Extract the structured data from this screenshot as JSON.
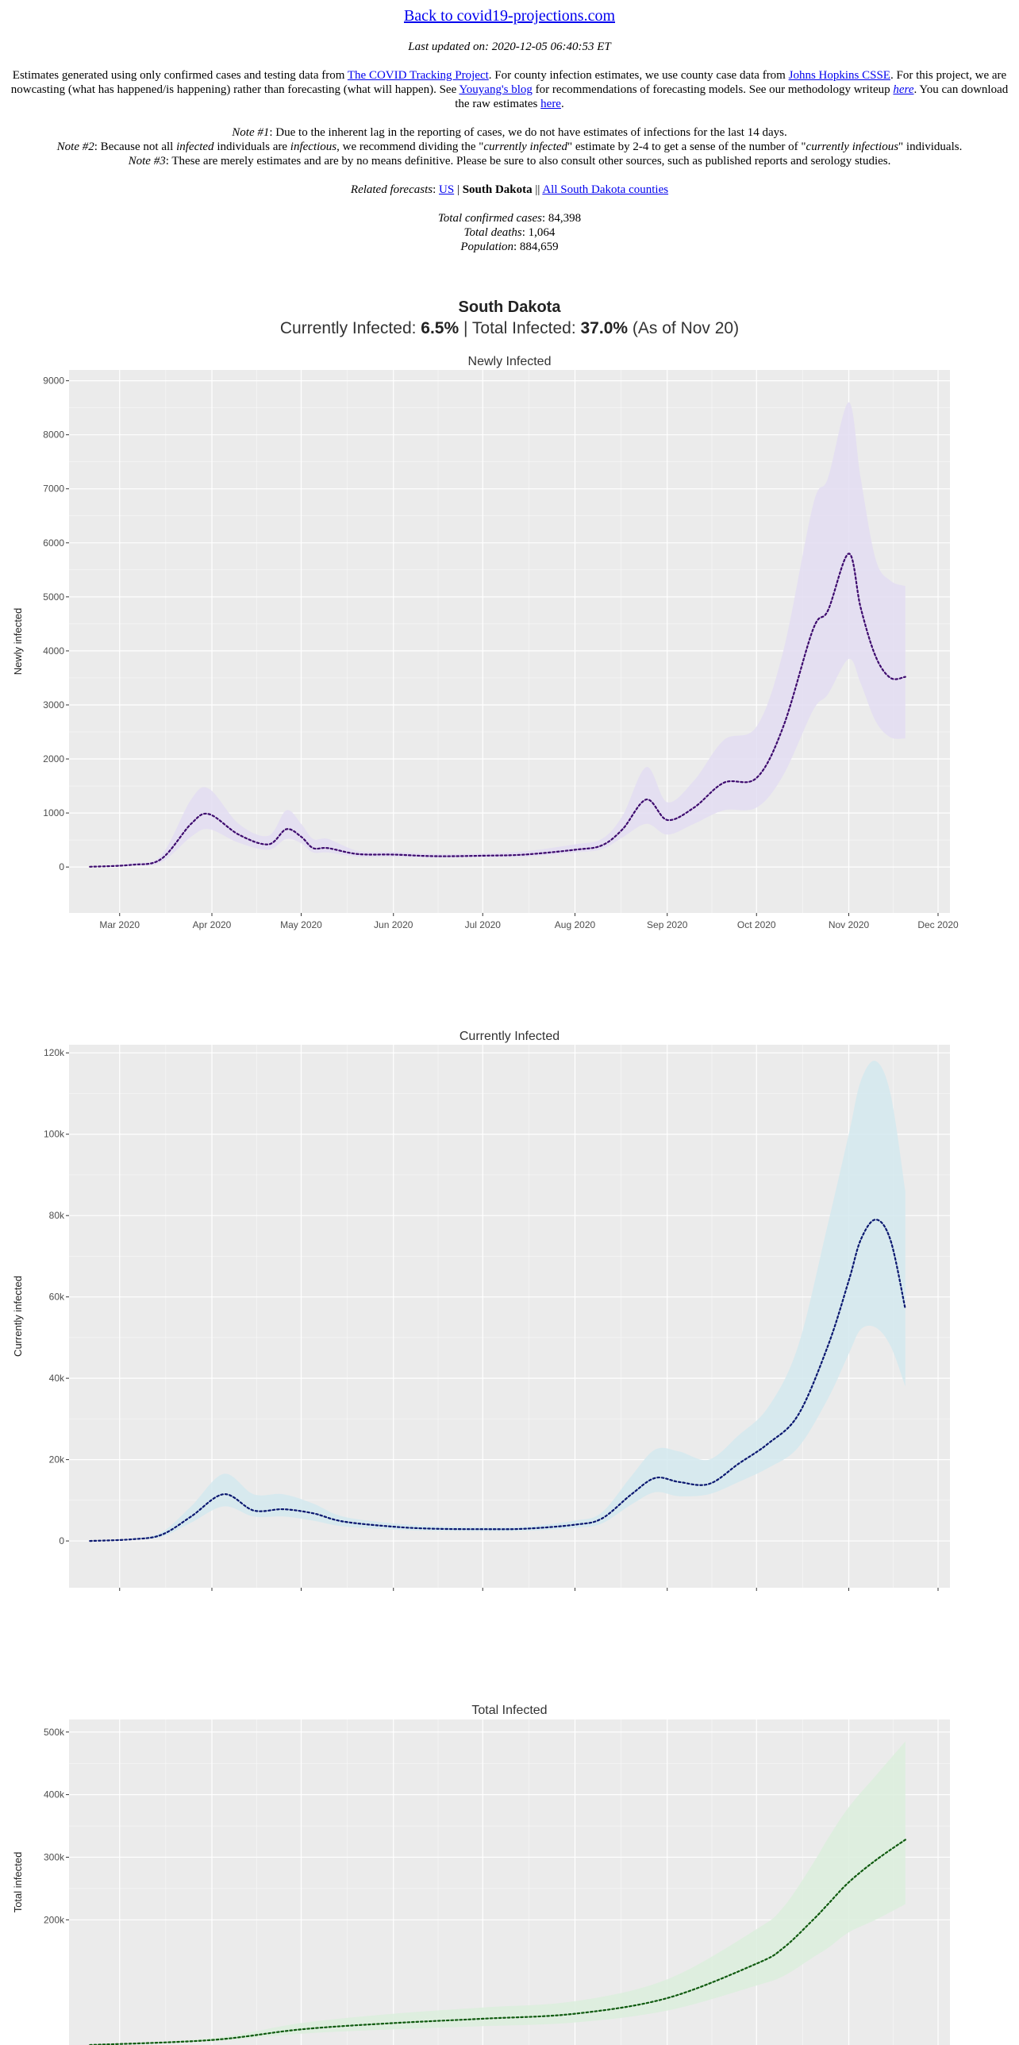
{
  "header": {
    "back_link": "Back to covid19-projections.com",
    "last_updated_label": "Last updated on: 2020-12-05 06:40:53 ET",
    "intro_1": "Estimates generated using only confirmed cases and testing data from ",
    "covid_tracking_link": "The COVID Tracking Project",
    "intro_2": ". For county infection estimates, we use county case data from ",
    "jhu_link": "Johns Hopkins CSSE",
    "intro_3": ". For this project, we are nowcasting (what has happened/is happening) rather than forecasting (what will happen). See ",
    "youyang_link": "Youyang's blog",
    "intro_4": " for recommendations of forecasting models. See our methodology writeup ",
    "methodology_link": "here",
    "intro_5": ". You can download the raw estimates ",
    "raw_link": "here",
    "intro_6": ".",
    "note1_label": "Note #1",
    "note1_text": ": Due to the inherent lag in the reporting of cases, we do not have estimates of infections for the last 14 days.",
    "note2_label": "Note #2",
    "note2_a": ": Because not all ",
    "note2_infected": "infected",
    "note2_b": " individuals are ",
    "note2_infectious": "infectious",
    "note2_c": ", we recommend dividing the \"",
    "note2_currently_infected": "currently infected",
    "note2_d": "\" estimate by 2-4 to get a sense of the number of \"",
    "note2_currently_infectious": "currently infectious",
    "note2_e": "\" individuals.",
    "note3_label": "Note #3",
    "note3_text": ": These are merely estimates and are by no means definitive. Please be sure to also consult other sources, such as published reports and serology studies.",
    "related_label": "Related forecasts",
    "related_us": "US",
    "related_sep1": " | ",
    "related_state": "South Dakota",
    "related_sep2": " || ",
    "related_counties": "All South Dakota counties",
    "cases_label": "Total confirmed cases",
    "cases_value": ": 84,398",
    "deaths_label": "Total deaths",
    "deaths_value": ": 1,064",
    "pop_label": "Population",
    "pop_value": ": 884,659"
  },
  "state": {
    "name": "South Dakota",
    "currently_label": "Currently Infected: ",
    "currently_value": "6.5%",
    "sep": " | Total Infected: ",
    "total_value": "37.0%",
    "asof": " (As of Nov 20)"
  },
  "colors": {
    "panel_bg": "#ebebeb",
    "grid": "#ffffff",
    "newly_band": "#e3ddf2",
    "newly_line": "#3d0a6e",
    "current_band": "#d3e9ef",
    "current_line": "#0b1870",
    "total_band": "#dcefdd",
    "total_line": "#0f5a0f"
  },
  "x_ticks": [
    "Mar 2020",
    "Apr 2020",
    "May 2020",
    "Jun 2020",
    "Jul 2020",
    "Aug 2020",
    "Sep 2020",
    "Oct 2020",
    "Nov 2020",
    "Dec 2020"
  ],
  "chart_data": [
    {
      "type": "line",
      "title": "Newly Infected",
      "ylabel": "Newly infected",
      "x_axis": "date",
      "x_range": [
        "2020-02-13",
        "2020-12-05"
      ],
      "ylim": [
        -850,
        9200
      ],
      "y_ticks": [
        0,
        1000,
        2000,
        3000,
        4000,
        5000,
        6000,
        7000,
        8000,
        9000
      ],
      "y_tick_labels": [
        "0",
        "1000",
        "2000",
        "3000",
        "4000",
        "5000",
        "6000",
        "7000",
        "8000",
        "9000"
      ],
      "series": [
        {
          "x": [
            "2020-02-20",
            "2020-03-05",
            "2020-03-15",
            "2020-03-25",
            "2020-03-31",
            "2020-04-10",
            "2020-04-20",
            "2020-04-26",
            "2020-05-01",
            "2020-05-05",
            "2020-05-10",
            "2020-05-20",
            "2020-06-01",
            "2020-06-15",
            "2020-07-01",
            "2020-07-15",
            "2020-08-01",
            "2020-08-10",
            "2020-08-17",
            "2020-08-25",
            "2020-09-01",
            "2020-09-10",
            "2020-09-20",
            "2020-10-01",
            "2020-10-10",
            "2020-10-20",
            "2020-10-25",
            "2020-11-01",
            "2020-11-05",
            "2020-11-10",
            "2020-11-15",
            "2020-11-20"
          ],
          "y": [
            5,
            40,
            150,
            800,
            980,
            600,
            420,
            700,
            560,
            350,
            350,
            240,
            230,
            200,
            210,
            230,
            320,
            400,
            700,
            1250,
            870,
            1100,
            1560,
            1650,
            2600,
            4400,
            4750,
            5800,
            4800,
            3900,
            3500,
            3520
          ],
          "low": [
            0,
            20,
            90,
            560,
            700,
            450,
            320,
            520,
            440,
            270,
            270,
            190,
            190,
            170,
            180,
            190,
            270,
            330,
            550,
            800,
            600,
            800,
            1050,
            1100,
            1700,
            2900,
            3200,
            3850,
            3400,
            2700,
            2400,
            2380
          ],
          "high": [
            10,
            70,
            220,
            1250,
            1450,
            800,
            580,
            1050,
            800,
            520,
            520,
            300,
            280,
            240,
            250,
            290,
            420,
            520,
            950,
            1850,
            1200,
            1600,
            2350,
            2600,
            4000,
            6700,
            7200,
            8600,
            7200,
            5700,
            5300,
            5200
          ]
        }
      ]
    },
    {
      "type": "line",
      "title": "Currently Infected",
      "ylabel": "Currently infected",
      "x_axis": "date",
      "x_range": [
        "2020-02-13",
        "2020-12-05"
      ],
      "ylim": [
        -11500,
        122000
      ],
      "y_ticks": [
        0,
        20000,
        40000,
        60000,
        80000,
        100000,
        120000
      ],
      "y_tick_labels": [
        "0",
        "20k",
        "40k",
        "60k",
        "80k",
        "100k",
        "120k"
      ],
      "series": [
        {
          "x": [
            "2020-02-20",
            "2020-03-05",
            "2020-03-15",
            "2020-03-25",
            "2020-04-05",
            "2020-04-15",
            "2020-04-25",
            "2020-05-05",
            "2020-05-15",
            "2020-06-01",
            "2020-06-15",
            "2020-07-01",
            "2020-07-15",
            "2020-08-01",
            "2020-08-10",
            "2020-08-20",
            "2020-08-28",
            "2020-09-05",
            "2020-09-15",
            "2020-09-25",
            "2020-10-05",
            "2020-10-15",
            "2020-10-25",
            "2020-11-01",
            "2020-11-05",
            "2020-11-10",
            "2020-11-15",
            "2020-11-20"
          ],
          "y": [
            0,
            400,
            1500,
            6000,
            11500,
            7500,
            7800,
            6800,
            4800,
            3500,
            3000,
            2900,
            3000,
            4000,
            5500,
            11500,
            15500,
            14500,
            14000,
            19000,
            24000,
            31000,
            48000,
            64000,
            74000,
            79000,
            74000,
            57000
          ],
          "low": [
            0,
            300,
            1000,
            4500,
            8500,
            6000,
            6000,
            5000,
            3600,
            2800,
            2500,
            2400,
            2500,
            3200,
            4300,
            9000,
            12000,
            11000,
            11500,
            14500,
            18000,
            23000,
            35000,
            46000,
            52000,
            52500,
            48000,
            38000
          ],
          "high": [
            0,
            600,
            2100,
            8500,
            16500,
            11500,
            11500,
            9200,
            6000,
            4300,
            3600,
            3400,
            3500,
            5000,
            7000,
            16000,
            22500,
            22000,
            20000,
            26000,
            33000,
            48000,
            78000,
            100000,
            113000,
            118000,
            110000,
            86000
          ]
        }
      ]
    },
    {
      "type": "line",
      "title": "Total Infected",
      "ylabel": "Total infected",
      "x_axis": "date",
      "x_range": [
        "2020-02-13",
        "2020-12-05"
      ],
      "ylim": [
        0,
        520000
      ],
      "y_ticks": [
        200000,
        300000,
        400000,
        500000
      ],
      "y_tick_labels": [
        "200k",
        "300k",
        "400k",
        "500k"
      ],
      "series": [
        {
          "x": [
            "2020-02-20",
            "2020-04-01",
            "2020-05-01",
            "2020-06-01",
            "2020-07-01",
            "2020-08-01",
            "2020-09-01",
            "2020-10-01",
            "2020-10-10",
            "2020-10-20",
            "2020-10-25",
            "2020-11-01",
            "2020-11-10",
            "2020-11-20"
          ],
          "y": [
            0,
            8000,
            25000,
            35000,
            42000,
            50000,
            75000,
            130000,
            155000,
            200000,
            225000,
            260000,
            295000,
            328000
          ],
          "low": [
            0,
            6000,
            18000,
            25000,
            30000,
            36000,
            55000,
            95000,
            110000,
            140000,
            155000,
            180000,
            200000,
            225000
          ],
          "high": [
            0,
            11000,
            35000,
            50000,
            60000,
            70000,
            105000,
            185000,
            220000,
            290000,
            330000,
            380000,
            430000,
            485000
          ]
        }
      ]
    }
  ]
}
